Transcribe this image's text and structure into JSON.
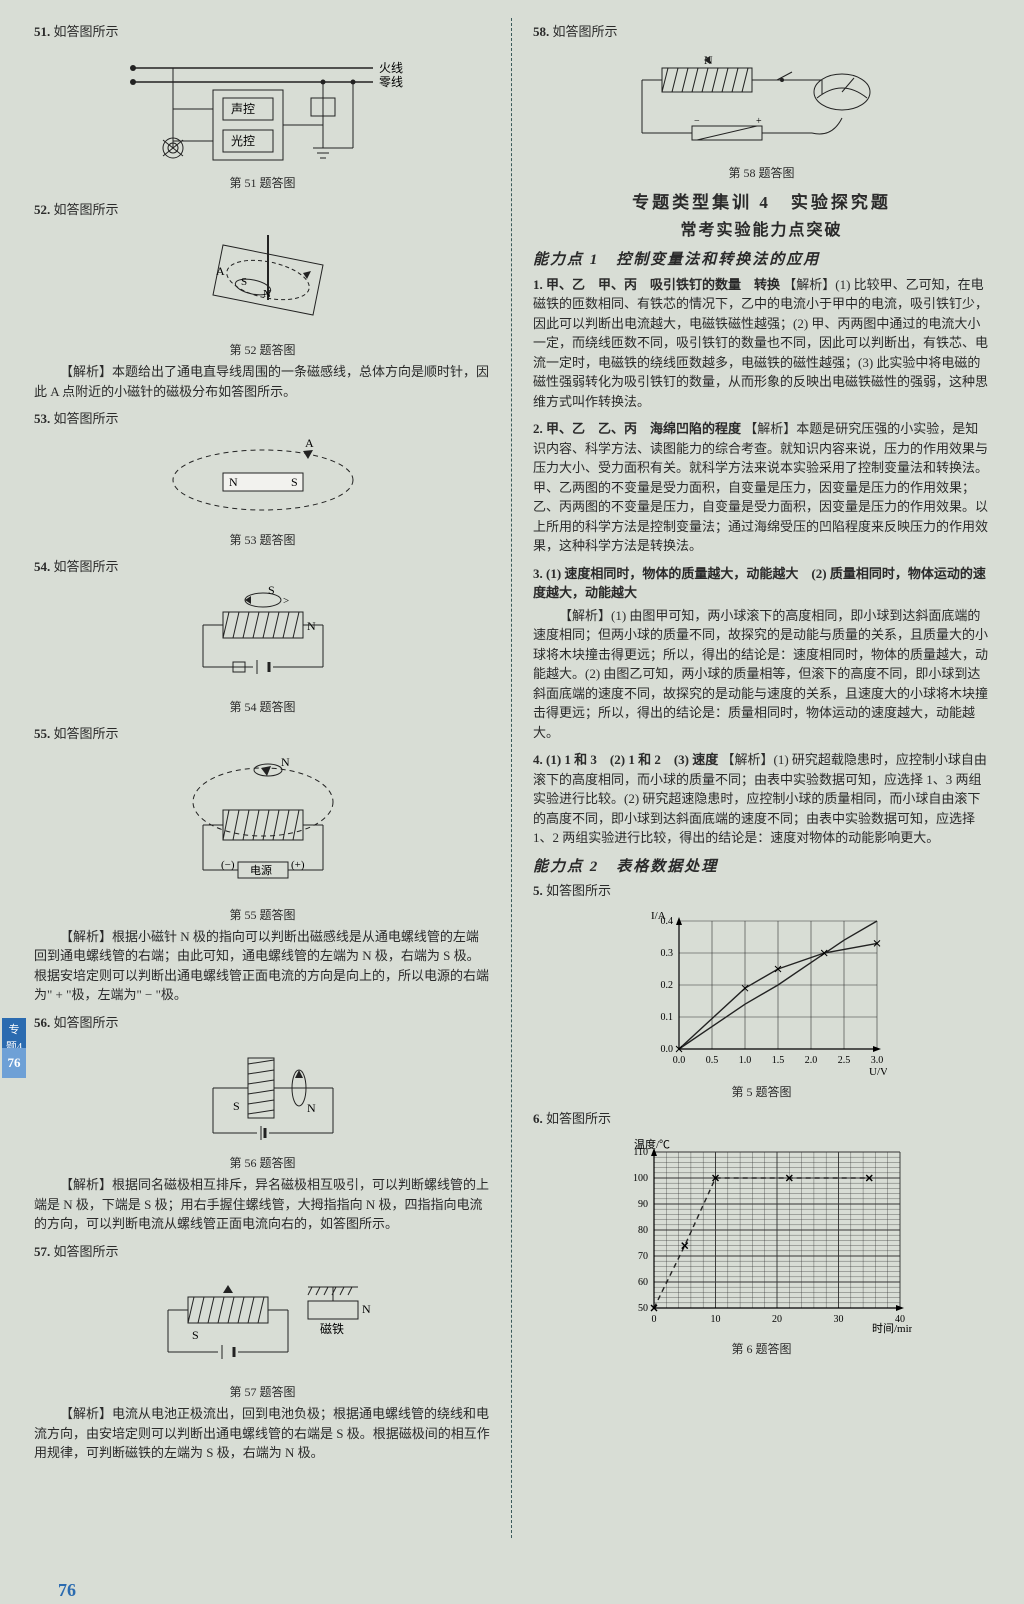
{
  "page_number_side": "76",
  "page_number_foot": "76",
  "side_tab": "专题4",
  "background_color": "#d8ddd5",
  "text_color": "#2a2a2a",
  "accent_blue": "#2b6bb0",
  "left_column": {
    "q51": {
      "num": "51.",
      "lead": "如答图所示",
      "caption": "第 51 题答图",
      "labels": {
        "live": "火线",
        "neutral": "零线",
        "sound": "声控",
        "light": "光控"
      }
    },
    "q52": {
      "num": "52.",
      "lead": "如答图所示",
      "caption": "第 52 题答图",
      "labels": {
        "A": "A",
        "N": "N",
        "S": "S"
      },
      "analysis": "【解析】本题给出了通电直导线周围的一条磁感线，总体方向是顺时针，因此 A 点附近的小磁针的磁极分布如答图所示。"
    },
    "q53": {
      "num": "53.",
      "lead": "如答图所示",
      "caption": "第 53 题答图",
      "labels": {
        "A": "A",
        "N": "N",
        "S": "S"
      }
    },
    "q54": {
      "num": "54.",
      "lead": "如答图所示",
      "caption": "第 54 题答图",
      "labels": {
        "N": "N",
        "S": "S"
      }
    },
    "q55": {
      "num": "55.",
      "lead": "如答图所示",
      "caption": "第 55 题答图",
      "labels": {
        "N": "N",
        "minus": "(−)",
        "plus": "(+)",
        "src": "电源"
      },
      "analysis": "【解析】根据小磁针 N 极的指向可以判断出磁感线是从通电螺线管的左端回到通电螺线管的右端；由此可知，通电螺线管的左端为 N 极，右端为 S 极。根据安培定则可以判断出通电螺线管正面电流的方向是向上的，所以电源的右端为\" + \"极，左端为\" − \"极。"
    },
    "q56": {
      "num": "56.",
      "lead": "如答图所示",
      "caption": "第 56 题答图",
      "labels": {
        "N": "N",
        "S": "S"
      },
      "analysis": "【解析】根据同名磁极相互排斥，异名磁极相互吸引，可以判断螺线管的上端是 N 极，下端是 S 极；用右手握住螺线管，大拇指指向 N 极，四指指向电流的方向，可以判断电流从螺线管正面电流向右的，如答图所示。"
    },
    "q57": {
      "num": "57.",
      "lead": "如答图所示",
      "caption": "第 57 题答图",
      "labels": {
        "N": "N",
        "S": "S",
        "mag": "磁铁"
      },
      "analysis": "【解析】电流从电池正极流出，回到电池负极；根据通电螺线管的绕线和电流方向，由安培定则可以判断出通电螺线管的右端是 S 极。根据磁极间的相互作用规律，可判断磁铁的左端为 S 极，右端为 N 极。"
    }
  },
  "right_column": {
    "q58": {
      "num": "58.",
      "lead": "如答图所示",
      "caption": "第 58 题答图",
      "labels": {
        "N": "N"
      }
    },
    "section_title": "专题类型集训 4　实验探究题",
    "section_sub": "常考实验能力点突破",
    "ability1": {
      "heading": "能力点 1　控制变量法和转换法的应用",
      "q1": {
        "num": "1.",
        "answer_bold": "甲、乙　甲、丙　吸引铁钉的数量　转换",
        "analysis": "【解析】(1) 比较甲、乙可知，在电磁铁的匝数相同、有铁芯的情况下，乙中的电流小于甲中的电流，吸引铁钉少，因此可以判断出电流越大，电磁铁磁性越强；(2) 甲、丙两图中通过的电流大小一定，而绕线匝数不同，吸引铁钉的数量也不同，因此可以判断出，有铁芯、电流一定时，电磁铁的绕线匝数越多，电磁铁的磁性越强；(3) 此实验中将电磁的磁性强弱转化为吸引铁钉的数量，从而形象的反映出电磁铁磁性的强弱，这种思维方式叫作转换法。"
      },
      "q2": {
        "num": "2.",
        "answer_bold": "甲、乙　乙、丙　海绵凹陷的程度",
        "analysis": "【解析】本题是研究压强的小实验，是知识内容、科学方法、读图能力的综合考查。就知识内容来说，压力的作用效果与压力大小、受力面积有关。就科学方法来说本实验采用了控制变量法和转换法。甲、乙两图的不变量是受力面积，自变量是压力，因变量是压力的作用效果；乙、丙两图的不变量是压力，自变量是受力面积，因变量是压力的作用效果。以上所用的科学方法是控制变量法；通过海绵受压的凹陷程度来反映压力的作用效果，这种科学方法是转换法。"
      },
      "q3": {
        "num": "3.",
        "answer_bold": "(1) 速度相同时，物体的质量越大，动能越大　(2) 质量相同时，物体运动的速度越大，动能越大",
        "analysis": "【解析】(1) 由图甲可知，两小球滚下的高度相同，即小球到达斜面底端的速度相同；但两小球的质量不同，故探究的是动能与质量的关系，且质量大的小球将木块撞击得更远；所以，得出的结论是：速度相同时，物体的质量越大，动能越大。(2) 由图乙可知，两小球的质量相等，但滚下的高度不同，即小球到达斜面底端的速度不同，故探究的是动能与速度的关系，且速度大的小球将木块撞击得更远；所以，得出的结论是：质量相同时，物体运动的速度越大，动能越大。"
      },
      "q4": {
        "num": "4.",
        "answer_bold": "(1) 1 和 3　(2) 1 和 2　(3) 速度",
        "analysis": "【解析】(1) 研究超载隐患时，应控制小球自由滚下的高度相同，而小球的质量不同；由表中实验数据可知，应选择 1、3 两组实验进行比较。(2) 研究超速隐患时，应控制小球的质量相同，而小球自由滚下的高度不同，即小球到达斜面底端的速度不同；由表中实验数据可知，应选择 1、2 两组实验进行比较，得出的结论是：速度对物体的动能影响更大。"
      }
    },
    "ability2": {
      "heading": "能力点 2　表格数据处理",
      "q5": {
        "num": "5.",
        "lead": "如答图所示",
        "caption": "第 5 题答图",
        "chart": {
          "type": "line",
          "xlabel": "U/V",
          "ylabel": "I/A",
          "xlim": [
            0,
            3.0
          ],
          "ylim": [
            0,
            0.4
          ],
          "xtick_step": 0.5,
          "ytick_step": 0.1,
          "grid_color": "#333333",
          "line_color": "#222222",
          "series1": {
            "x": [
              0,
              0.5,
              1.0,
              1.5,
              2.0,
              2.5,
              3.0
            ],
            "y": [
              0,
              0.07,
              0.14,
              0.2,
              0.27,
              0.34,
              0.4
            ],
            "style": "solid"
          },
          "series2": {
            "x": [
              0,
              1.0,
              1.5,
              2.2,
              3.0
            ],
            "y": [
              0,
              0.19,
              0.25,
              0.3,
              0.33
            ],
            "style": "curve",
            "markers": true
          }
        }
      },
      "q6": {
        "num": "6.",
        "lead": "如答图所示",
        "caption": "第 6 题答图",
        "chart": {
          "type": "line",
          "xlabel": "时间/min",
          "ylabel": "温度/℃",
          "xlim": [
            0,
            40
          ],
          "ylim": [
            50,
            110
          ],
          "xtick_step": 10,
          "ytick_step": 10,
          "grid_color": "#333333",
          "line_color": "#222222",
          "grid_style": "fine-hatch",
          "series": {
            "x": [
              0,
              5,
              10,
              22,
              35
            ],
            "y": [
              50,
              74,
              100,
              100,
              100
            ],
            "style": "dashed-with-x-markers"
          }
        }
      }
    }
  }
}
